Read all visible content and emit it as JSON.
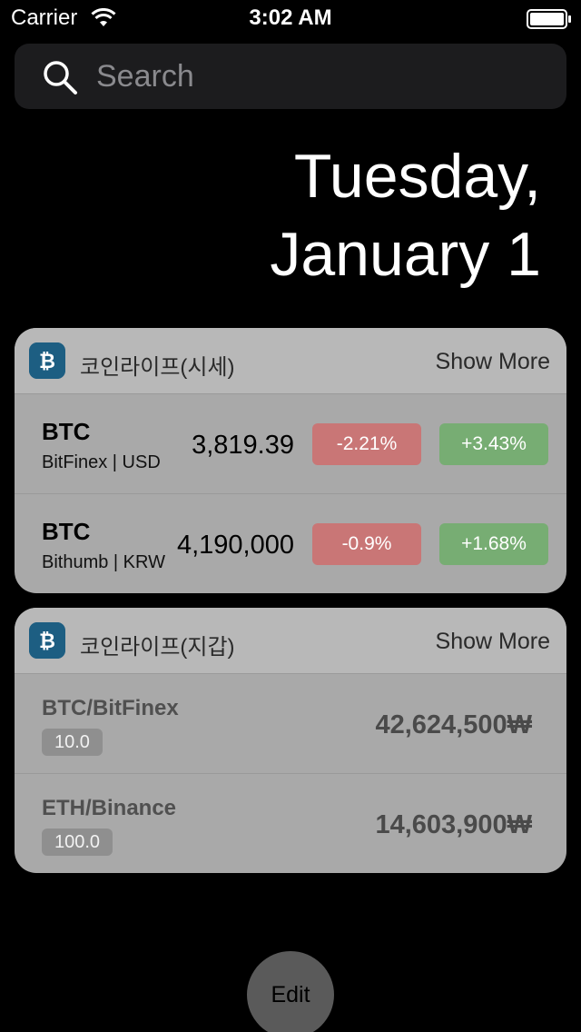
{
  "status_bar": {
    "carrier": "Carrier",
    "time": "3:02 AM"
  },
  "search": {
    "placeholder": "Search"
  },
  "date": {
    "line1": "Tuesday,",
    "line2": "January 1"
  },
  "price_widget": {
    "app_name": "코인라이프(시세)",
    "show_more": "Show More",
    "rows": [
      {
        "coin": "BTC",
        "exchange": "BitFinex | USD",
        "price": "3,819.39",
        "change_neg": "-2.21%",
        "change_pos": "+3.43%"
      },
      {
        "coin": "BTC",
        "exchange": "Bithumb | KRW",
        "price": "4,190,000",
        "change_neg": "-0.9%",
        "change_pos": "+1.68%"
      }
    ]
  },
  "wallet_widget": {
    "app_name": "코인라이프(지갑)",
    "show_more": "Show More",
    "rows": [
      {
        "name": "BTC/BitFinex",
        "quantity": "10.0",
        "value": "42,624,500₩"
      },
      {
        "name": "ETH/Binance",
        "quantity": "100.0",
        "value": "14,603,900₩"
      }
    ]
  },
  "edit_label": "Edit",
  "colors": {
    "app_icon": "#1d5e82",
    "negative": "#c97676",
    "positive": "#77ad73"
  }
}
